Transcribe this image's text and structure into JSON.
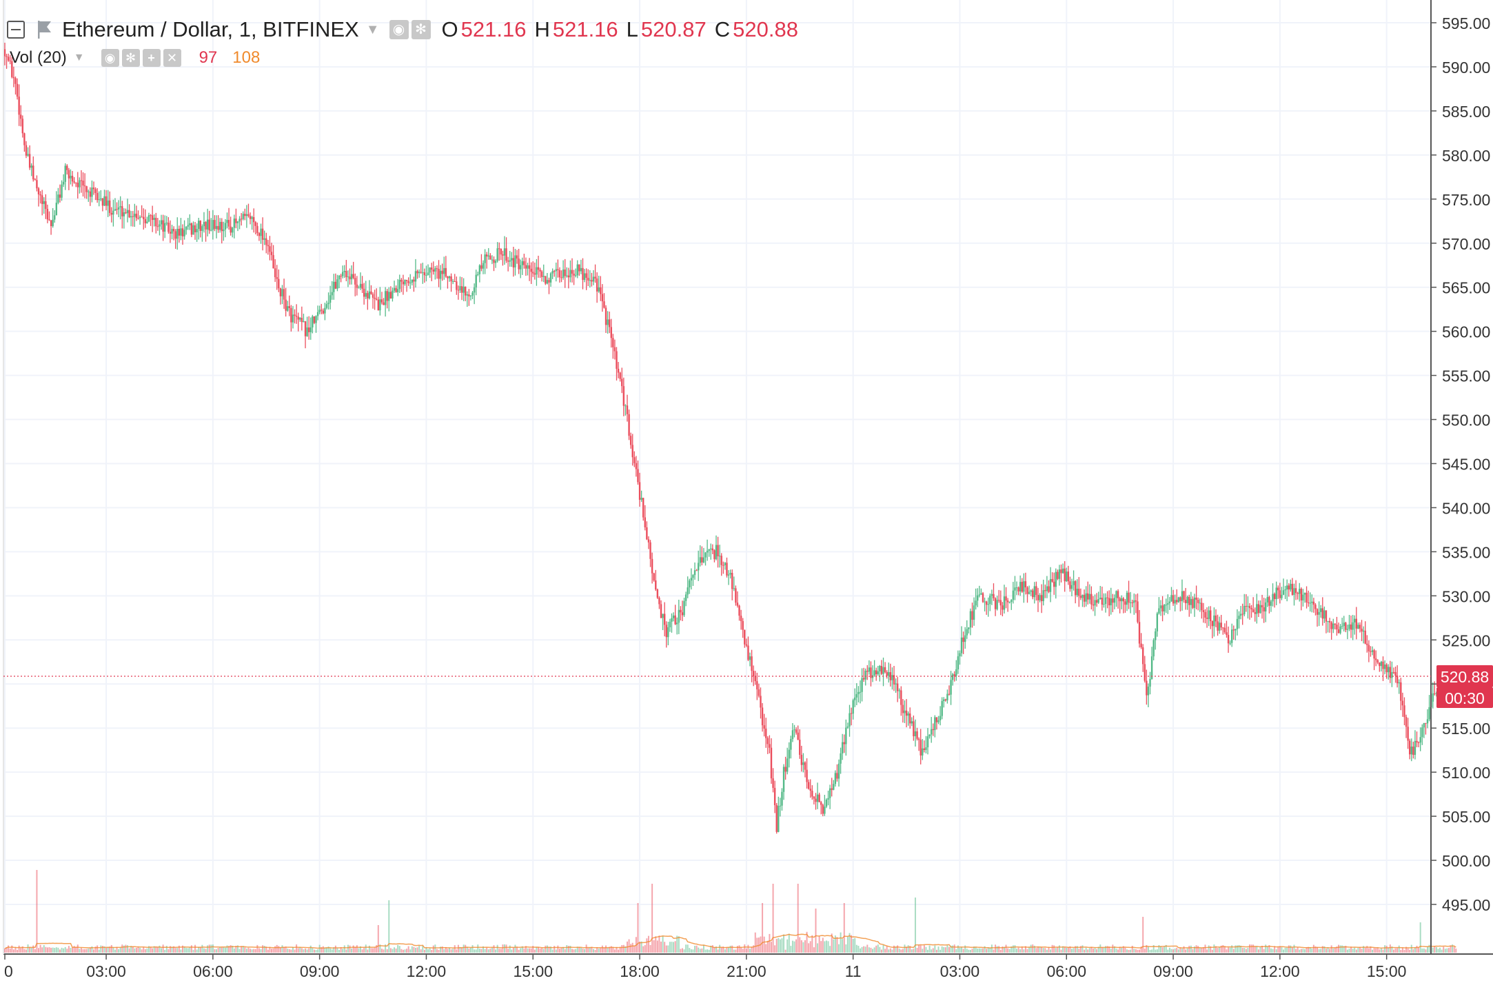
{
  "header": {
    "symbol": "Ethereum / Dollar, 1, BITFINEX",
    "ohlc": [
      {
        "key": "O",
        "value": "521.16"
      },
      {
        "key": "H",
        "value": "521.16"
      },
      {
        "key": "L",
        "value": "520.87"
      },
      {
        "key": "C",
        "value": "520.88"
      }
    ]
  },
  "volume_legend": {
    "label": "Vol (20)",
    "value_a": "97",
    "value_b": "108"
  },
  "price_marker": {
    "price": "520.88",
    "countdown": "00:30"
  },
  "colors": {
    "up": "#53b987",
    "down": "#eb4d5c",
    "grid": "#f0f3fa",
    "volume_ma": "#f08a2c",
    "price_label": "#e0364f"
  },
  "chart_data": {
    "type": "candlestick",
    "interval": "1 minute",
    "ylim": [
      490,
      598
    ],
    "y_ticks": [
      "595.00",
      "590.00",
      "585.00",
      "580.00",
      "575.00",
      "570.00",
      "565.00",
      "560.00",
      "555.00",
      "550.00",
      "545.00",
      "540.00",
      "535.00",
      "530.00",
      "525.00",
      "520.00",
      "515.00",
      "510.00",
      "505.00",
      "500.00",
      "495.00"
    ],
    "x_ticks": [
      "0",
      "03:00",
      "06:00",
      "09:00",
      "12:00",
      "15:00",
      "18:00",
      "21:00",
      "11",
      "03:00",
      "06:00",
      "09:00",
      "12:00",
      "15:00"
    ],
    "x_range_hours": [
      0,
      40.8
    ],
    "price_path": [
      [
        0.0,
        592
      ],
      [
        0.3,
        588
      ],
      [
        0.6,
        580
      ],
      [
        0.9,
        576
      ],
      [
        1.3,
        572
      ],
      [
        1.7,
        578
      ],
      [
        2.3,
        576
      ],
      [
        3.0,
        574
      ],
      [
        4.0,
        573
      ],
      [
        4.8,
        571
      ],
      [
        5.6,
        572
      ],
      [
        6.4,
        572
      ],
      [
        6.9,
        573
      ],
      [
        7.4,
        570
      ],
      [
        7.6,
        566
      ],
      [
        8.0,
        562
      ],
      [
        8.5,
        560
      ],
      [
        9.0,
        563
      ],
      [
        9.5,
        567
      ],
      [
        10.0,
        565
      ],
      [
        10.5,
        563
      ],
      [
        11.2,
        566
      ],
      [
        12.0,
        567
      ],
      [
        12.6,
        566
      ],
      [
        13.0,
        564
      ],
      [
        13.5,
        568
      ],
      [
        14.0,
        569
      ],
      [
        14.6,
        567
      ],
      [
        15.3,
        566
      ],
      [
        16.0,
        567
      ],
      [
        16.6,
        566
      ],
      [
        17.0,
        560
      ],
      [
        17.5,
        550
      ],
      [
        18.0,
        538
      ],
      [
        18.3,
        530
      ],
      [
        18.6,
        526
      ],
      [
        19.0,
        528
      ],
      [
        19.5,
        534
      ],
      [
        20.0,
        535
      ],
      [
        20.4,
        532
      ],
      [
        20.8,
        525
      ],
      [
        21.2,
        518
      ],
      [
        21.5,
        512
      ],
      [
        21.7,
        504
      ],
      [
        21.9,
        510
      ],
      [
        22.2,
        515
      ],
      [
        22.6,
        508
      ],
      [
        23.0,
        506
      ],
      [
        23.4,
        510
      ],
      [
        23.8,
        517
      ],
      [
        24.2,
        521
      ],
      [
        24.6,
        522
      ],
      [
        25.0,
        520
      ],
      [
        25.4,
        516
      ],
      [
        25.8,
        512
      ],
      [
        26.2,
        516
      ],
      [
        26.6,
        520
      ],
      [
        27.0,
        526
      ],
      [
        27.4,
        530
      ],
      [
        28.0,
        529
      ],
      [
        28.6,
        531
      ],
      [
        29.2,
        530
      ],
      [
        29.7,
        533
      ],
      [
        30.2,
        530
      ],
      [
        30.8,
        529
      ],
      [
        31.4,
        530
      ],
      [
        31.8,
        529
      ],
      [
        32.1,
        518
      ],
      [
        32.4,
        528
      ],
      [
        33.0,
        530
      ],
      [
        33.6,
        529
      ],
      [
        34.0,
        527
      ],
      [
        34.4,
        525
      ],
      [
        34.8,
        528
      ],
      [
        35.4,
        529
      ],
      [
        36.0,
        531
      ],
      [
        36.5,
        530
      ],
      [
        37.0,
        528
      ],
      [
        37.5,
        526
      ],
      [
        38.0,
        527
      ],
      [
        38.4,
        524
      ],
      [
        38.8,
        522
      ],
      [
        39.2,
        520
      ],
      [
        39.5,
        512
      ],
      [
        39.8,
        514
      ],
      [
        40.1,
        518
      ],
      [
        40.5,
        520
      ],
      [
        40.8,
        520.88
      ]
    ],
    "volume_spikes": [
      [
        0.9,
        0.3
      ],
      [
        10.5,
        0.1
      ],
      [
        10.8,
        0.19
      ],
      [
        17.8,
        0.18
      ],
      [
        18.2,
        0.25
      ],
      [
        21.3,
        0.18
      ],
      [
        21.6,
        0.25
      ],
      [
        22.3,
        0.25
      ],
      [
        22.8,
        0.16
      ],
      [
        23.6,
        0.18
      ],
      [
        25.6,
        0.2
      ],
      [
        32.0,
        0.13
      ],
      [
        39.8,
        0.11
      ]
    ],
    "last_price": 520.88
  }
}
